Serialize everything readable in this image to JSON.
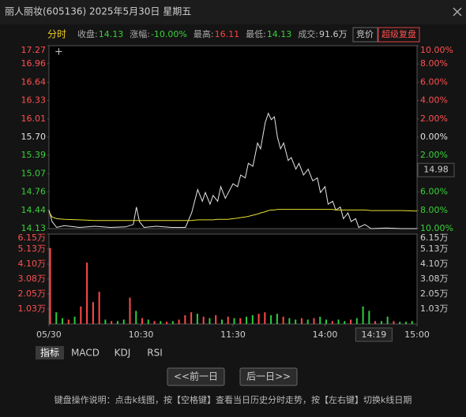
{
  "window": {
    "title": "丽人丽妆(605136) 2025年5月30日 星期五"
  },
  "header": {
    "mode": "分时",
    "items": [
      {
        "label": "收盘:",
        "value": "14.13",
        "color": "#3ad03a"
      },
      {
        "label": "涨幅:",
        "value": "-10.00%",
        "color": "#3ad03a"
      },
      {
        "label": "最高:",
        "value": "16.11",
        "color": "#ff4040"
      },
      {
        "label": "最低:",
        "value": "14.13",
        "color": "#3ad03a"
      },
      {
        "label": "成交:",
        "value": "91.6万",
        "color": "#cccccc"
      }
    ],
    "auction": "竞价",
    "replay": "超级复盘"
  },
  "chart_data": [
    {
      "type": "line",
      "x": [
        0,
        2,
        5,
        10,
        20,
        30,
        40,
        50,
        55,
        57,
        59,
        62,
        70,
        80,
        89,
        93,
        97,
        100,
        102,
        105,
        107,
        110,
        112,
        115,
        117,
        120,
        123,
        125,
        128,
        130,
        133,
        136,
        138,
        141,
        143,
        145,
        147,
        149,
        151,
        153,
        156,
        158,
        161,
        163,
        166,
        169,
        172,
        175,
        177,
        180,
        182,
        185,
        187,
        190,
        192,
        195,
        197,
        200,
        202,
        206,
        210,
        220,
        230,
        240
      ],
      "series": [
        {
          "color": "#e6e6e6",
          "values": [
            14.45,
            14.25,
            14.15,
            14.18,
            14.15,
            14.17,
            14.15,
            14.16,
            14.2,
            14.5,
            14.25,
            14.15,
            14.17,
            14.15,
            14.15,
            14.4,
            14.8,
            14.6,
            14.75,
            14.55,
            14.7,
            14.6,
            14.85,
            14.65,
            14.75,
            14.9,
            14.85,
            15.05,
            15.0,
            15.25,
            15.2,
            15.6,
            15.5,
            15.95,
            16.11,
            16.0,
            16.05,
            15.7,
            15.5,
            15.6,
            15.3,
            15.35,
            15.15,
            15.25,
            15.05,
            15.15,
            14.95,
            15.0,
            14.75,
            14.85,
            14.55,
            14.6,
            14.45,
            14.5,
            14.3,
            14.4,
            14.25,
            14.3,
            14.15,
            14.2,
            14.13,
            14.14,
            14.13,
            14.13
          ]
        },
        {
          "color": "#e8e030",
          "values": [
            14.42,
            14.33,
            14.3,
            14.29,
            14.28,
            14.27,
            14.27,
            14.27,
            14.27,
            14.27,
            14.27,
            14.27,
            14.27,
            14.27,
            14.27,
            14.27,
            14.28,
            14.28,
            14.28,
            14.28,
            14.28,
            14.29,
            14.29,
            14.29,
            14.29,
            14.3,
            14.31,
            14.32,
            14.33,
            14.34,
            14.36,
            14.38,
            14.4,
            14.42,
            14.44,
            14.45,
            14.45,
            14.46,
            14.46,
            14.46,
            14.46,
            14.46,
            14.46,
            14.46,
            14.46,
            14.46,
            14.46,
            14.46,
            14.46,
            14.46,
            14.46,
            14.46,
            14.45,
            14.45,
            14.45,
            14.45,
            14.45,
            14.45,
            14.45,
            14.45,
            14.44,
            14.44,
            14.44,
            14.43
          ]
        }
      ],
      "xlim": [
        0,
        240
      ],
      "xticks": [
        {
          "value": 0,
          "label": "05/30"
        },
        {
          "value": 60,
          "label": "10:30"
        },
        {
          "value": 120,
          "label": "11:30"
        },
        {
          "value": 180,
          "label": "14:00"
        },
        {
          "value": 240,
          "label": "15:00"
        }
      ],
      "ylim": [
        14.13,
        17.27
      ],
      "yticks": [
        17.27,
        16.96,
        16.64,
        16.33,
        16.01,
        {
          "value": 15.7,
          "label": "15.70"
        },
        15.39,
        15.07,
        14.76,
        14.44,
        14.13
      ],
      "y2lim": [
        -10,
        10
      ],
      "y2ticks": [
        {
          "value": 10,
          "label": "10.00%"
        },
        {
          "value": 8,
          "label": "8.00%"
        },
        {
          "value": 6,
          "label": "6.00%"
        },
        {
          "value": 4,
          "label": "4.00%"
        },
        {
          "value": 2,
          "label": "2.00%"
        },
        {
          "value": 0,
          "label": "0.00%"
        },
        {
          "value": -2,
          "label": "2.00%"
        },
        {
          "value": -6,
          "label": "6.00%"
        },
        {
          "value": -8,
          "label": "8.00%"
        },
        {
          "value": -10,
          "label": "10.00%"
        }
      ],
      "cursor": {
        "y": 14.98,
        "x": {
          "value": 199,
          "label": "14:19"
        }
      },
      "grid": false
    },
    {
      "type": "bar",
      "x": [
        0,
        4,
        8,
        12,
        16,
        20,
        24,
        28,
        32,
        36,
        40,
        44,
        48,
        52,
        56,
        60,
        64,
        68,
        72,
        76,
        80,
        84,
        88,
        92,
        96,
        100,
        104,
        108,
        112,
        116,
        120,
        124,
        128,
        132,
        136,
        140,
        144,
        148,
        152,
        156,
        160,
        164,
        168,
        172,
        176,
        180,
        184,
        188,
        192,
        196,
        200,
        204,
        208,
        212,
        216,
        220,
        224,
        228,
        232,
        236
      ],
      "series": [
        {
          "values": [
            5.2,
            0.8,
            0.4,
            0.3,
            0.5,
            1.2,
            4.2,
            1.5,
            2.2,
            0.3,
            0.2,
            0.2,
            0.3,
            1.8,
            0.9,
            0.4,
            0.3,
            0.2,
            0.2,
            0.15,
            0.2,
            0.3,
            0.6,
            0.8,
            0.7,
            0.5,
            0.4,
            0.6,
            0.3,
            0.5,
            0.4,
            0.4,
            0.5,
            0.6,
            0.7,
            0.8,
            0.6,
            0.7,
            0.5,
            0.4,
            0.3,
            0.4,
            0.3,
            0.4,
            0.5,
            0.3,
            0.2,
            0.3,
            0.2,
            0.3,
            0.4,
            1.2,
            0.9,
            0.2,
            0.2,
            0.5,
            0.2,
            0.15,
            0.15,
            0.2
          ],
          "colors": [
            "#ff4a4a",
            "#2ecc40",
            "#2ecc40",
            "#ff4a4a",
            "#2ecc40",
            "#ff4a4a",
            "#ff4a4a",
            "#ff4a4a",
            "#ff4a4a",
            "#2ecc40",
            "#ff4a4a",
            "#2ecc40",
            "#2ecc40",
            "#ff4a4a",
            "#2ecc40",
            "#ff4a4a",
            "#2ecc40",
            "#ff4a4a",
            "#2ecc40",
            "#ff4a4a",
            "#2ecc40",
            "#ff4a4a",
            "#ff4a4a",
            "#ff4a4a",
            "#2ecc40",
            "#ff4a4a",
            "#2ecc40",
            "#ff4a4a",
            "#2ecc40",
            "#ff4a4a",
            "#2ecc40",
            "#ff4a4a",
            "#2ecc40",
            "#2ecc40",
            "#ff4a4a",
            "#ff4a4a",
            "#2ecc40",
            "#2ecc40",
            "#ff4a4a",
            "#2ecc40",
            "#2ecc40",
            "#ff4a4a",
            "#2ecc40",
            "#ff4a4a",
            "#2ecc40",
            "#2ecc40",
            "#ff4a4a",
            "#2ecc40",
            "#2ecc40",
            "#ff4a4a",
            "#2ecc40",
            "#2ecc40",
            "#2ecc40",
            "#ff4a4a",
            "#2ecc40",
            "#2ecc40",
            "#ff4a4a",
            "#2ecc40",
            "#2ecc40",
            "#2ecc40"
          ]
        }
      ],
      "xlim": [
        0,
        240
      ],
      "ylim": [
        0,
        6.15
      ],
      "yticks": [
        {
          "value": 6.15,
          "label": "6.15万"
        },
        {
          "value": 5.13,
          "label": "5.13万"
        },
        {
          "value": 4.1,
          "label": "4.10万"
        },
        {
          "value": 3.08,
          "label": "3.08万"
        },
        {
          "value": 2.05,
          "label": "2.05万"
        },
        {
          "value": 1.03,
          "label": "1.03万"
        }
      ]
    }
  ],
  "tabs": [
    "指标",
    "MACD",
    "KDJ",
    "RSI"
  ],
  "buttons": [
    "<<前一日",
    "后一日>>"
  ],
  "footer": "键盘操作说明：点击k线图，按【空格键】查看当日历史分时走势，按【左右键】切换k线日期"
}
